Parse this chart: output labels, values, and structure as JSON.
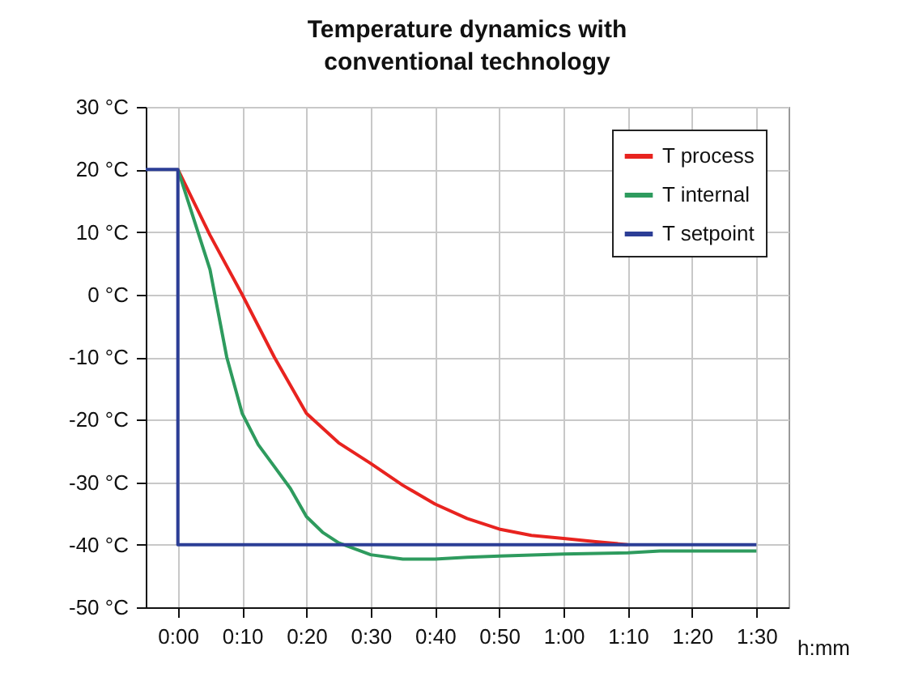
{
  "chart_data": {
    "type": "line",
    "title": "Temperature dynamics with\nconventional technology",
    "xlabel": "h:mm",
    "xlim": [
      -0.0833,
      1.5833
    ],
    "xticks": [
      {
        "value": 0,
        "label": "0:00"
      },
      {
        "value": 0.1667,
        "label": "0:10"
      },
      {
        "value": 0.3333,
        "label": "0:20"
      },
      {
        "value": 0.5,
        "label": "0:30"
      },
      {
        "value": 0.6667,
        "label": "0:40"
      },
      {
        "value": 0.8333,
        "label": "0:50"
      },
      {
        "value": 1,
        "label": "1:00"
      },
      {
        "value": 1.1667,
        "label": "1:10"
      },
      {
        "value": 1.3333,
        "label": "1:20"
      },
      {
        "value": 1.5,
        "label": "1:30"
      }
    ],
    "ylim": [
      -50,
      30
    ],
    "yticks": [
      {
        "value": -50,
        "label": "-50 °C"
      },
      {
        "value": -40,
        "label": "-40 °C"
      },
      {
        "value": -30,
        "label": "-30 °C"
      },
      {
        "value": -20,
        "label": "-20 °C"
      },
      {
        "value": -10,
        "label": "-10 °C"
      },
      {
        "value": 0,
        "label": "0 °C"
      },
      {
        "value": 10,
        "label": "10 °C"
      },
      {
        "value": 20,
        "label": "20 °C"
      },
      {
        "value": 30,
        "label": "30 °C"
      }
    ],
    "grid": true,
    "legend": "top right",
    "series": [
      {
        "name": "T process",
        "color": "#e8231f",
        "x": [
          0,
          0.0833,
          0.1667,
          0.25,
          0.3333,
          0.4167,
          0.5,
          0.5833,
          0.6667,
          0.75,
          0.8333,
          0.9167,
          1,
          1.0833,
          1.1667
        ],
        "values": [
          20,
          9.5,
          0,
          -10,
          -19,
          -23.7,
          -27,
          -30.5,
          -33.5,
          -35.8,
          -37.5,
          -38.5,
          -39,
          -39.5,
          -40
        ]
      },
      {
        "name": "T internal",
        "color": "#2e9b5e",
        "x": [
          0,
          0.0833,
          0.1267,
          0.1667,
          0.2083,
          0.25,
          0.2917,
          0.3333,
          0.375,
          0.4167,
          0.5,
          0.5833,
          0.6667,
          0.75,
          0.8333,
          1,
          1.1667,
          1.25,
          1.5
        ],
        "values": [
          20,
          4,
          -10,
          -19,
          -24,
          -27.5,
          -31,
          -35.5,
          -38,
          -39.7,
          -41.6,
          -42.3,
          -42.3,
          -42,
          -41.8,
          -41.5,
          -41.3,
          -41,
          -41
        ]
      },
      {
        "name": "T setpoint",
        "color": "#2c3e96",
        "x": [
          -0.0833,
          0,
          0,
          1.5
        ],
        "values": [
          20,
          20,
          -40,
          -40
        ]
      }
    ]
  }
}
